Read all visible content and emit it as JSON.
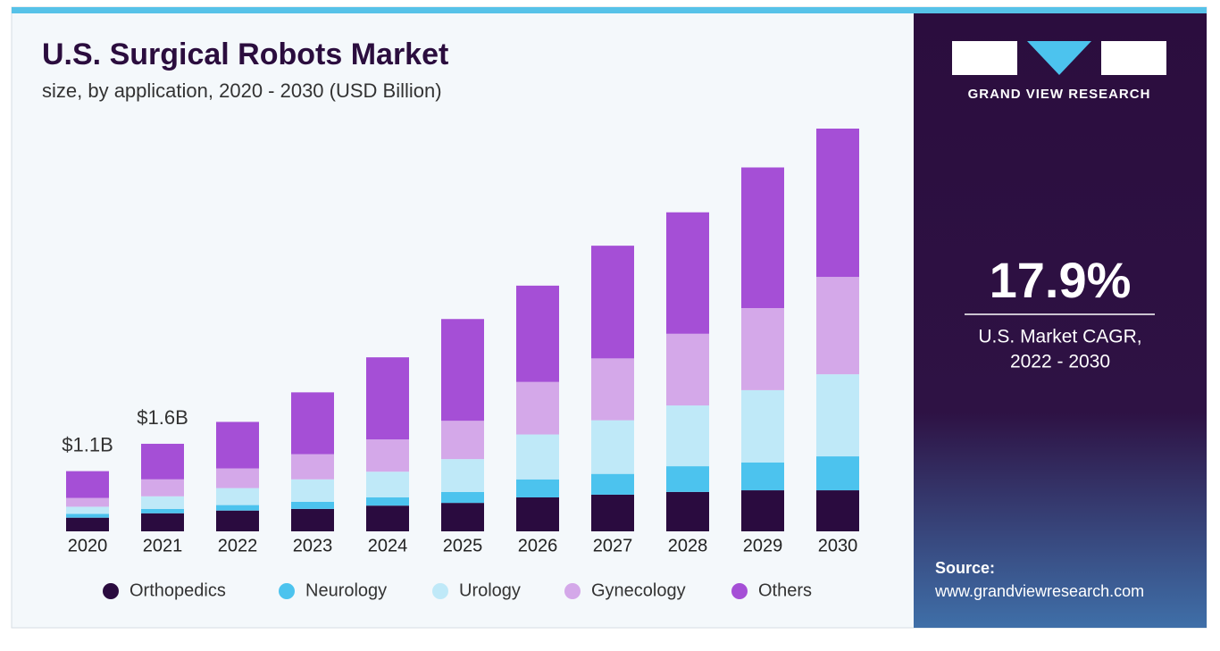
{
  "chart_data": {
    "type": "stacked_bar",
    "title": "U.S. Surgical Robots Market",
    "subtitle": "size, by application, 2020 - 2030 (USD Billion)",
    "categories": [
      "2020",
      "2021",
      "2022",
      "2023",
      "2024",
      "2025",
      "2026",
      "2027",
      "2028",
      "2029",
      "2030"
    ],
    "series": [
      {
        "name": "Orthopedics",
        "color": "#2a0b3f",
        "values": [
          0.25,
          0.33,
          0.38,
          0.41,
          0.47,
          0.52,
          0.62,
          0.67,
          0.72,
          0.75,
          0.75
        ]
      },
      {
        "name": "Neurology",
        "color": "#4cc3ee",
        "values": [
          0.07,
          0.08,
          0.1,
          0.13,
          0.15,
          0.2,
          0.33,
          0.38,
          0.47,
          0.51,
          0.62
        ]
      },
      {
        "name": "Urology",
        "color": "#bfe9f8",
        "values": [
          0.13,
          0.23,
          0.31,
          0.41,
          0.47,
          0.6,
          0.82,
          0.98,
          1.11,
          1.32,
          1.5
        ]
      },
      {
        "name": "Gynecology",
        "color": "#d4a8e9",
        "values": [
          0.16,
          0.31,
          0.36,
          0.46,
          0.59,
          0.7,
          0.96,
          1.13,
          1.31,
          1.5,
          1.78
        ]
      },
      {
        "name": "Others",
        "color": "#a54fd6",
        "values": [
          0.49,
          0.65,
          0.85,
          1.13,
          1.5,
          1.86,
          1.76,
          2.06,
          2.22,
          2.57,
          2.71
        ]
      }
    ],
    "annotations": [
      {
        "x": "2020",
        "text": "$1.1B"
      },
      {
        "x": "2021",
        "text": "$1.6B"
      }
    ]
  },
  "sidebar": {
    "brand": "GRAND VIEW RESEARCH",
    "stat": "17.9%",
    "stat_caption": [
      "U.S. Market CAGR,",
      "2022 - 2030"
    ],
    "source_label": "Source:",
    "source_url": "www.grandviewresearch.com"
  }
}
